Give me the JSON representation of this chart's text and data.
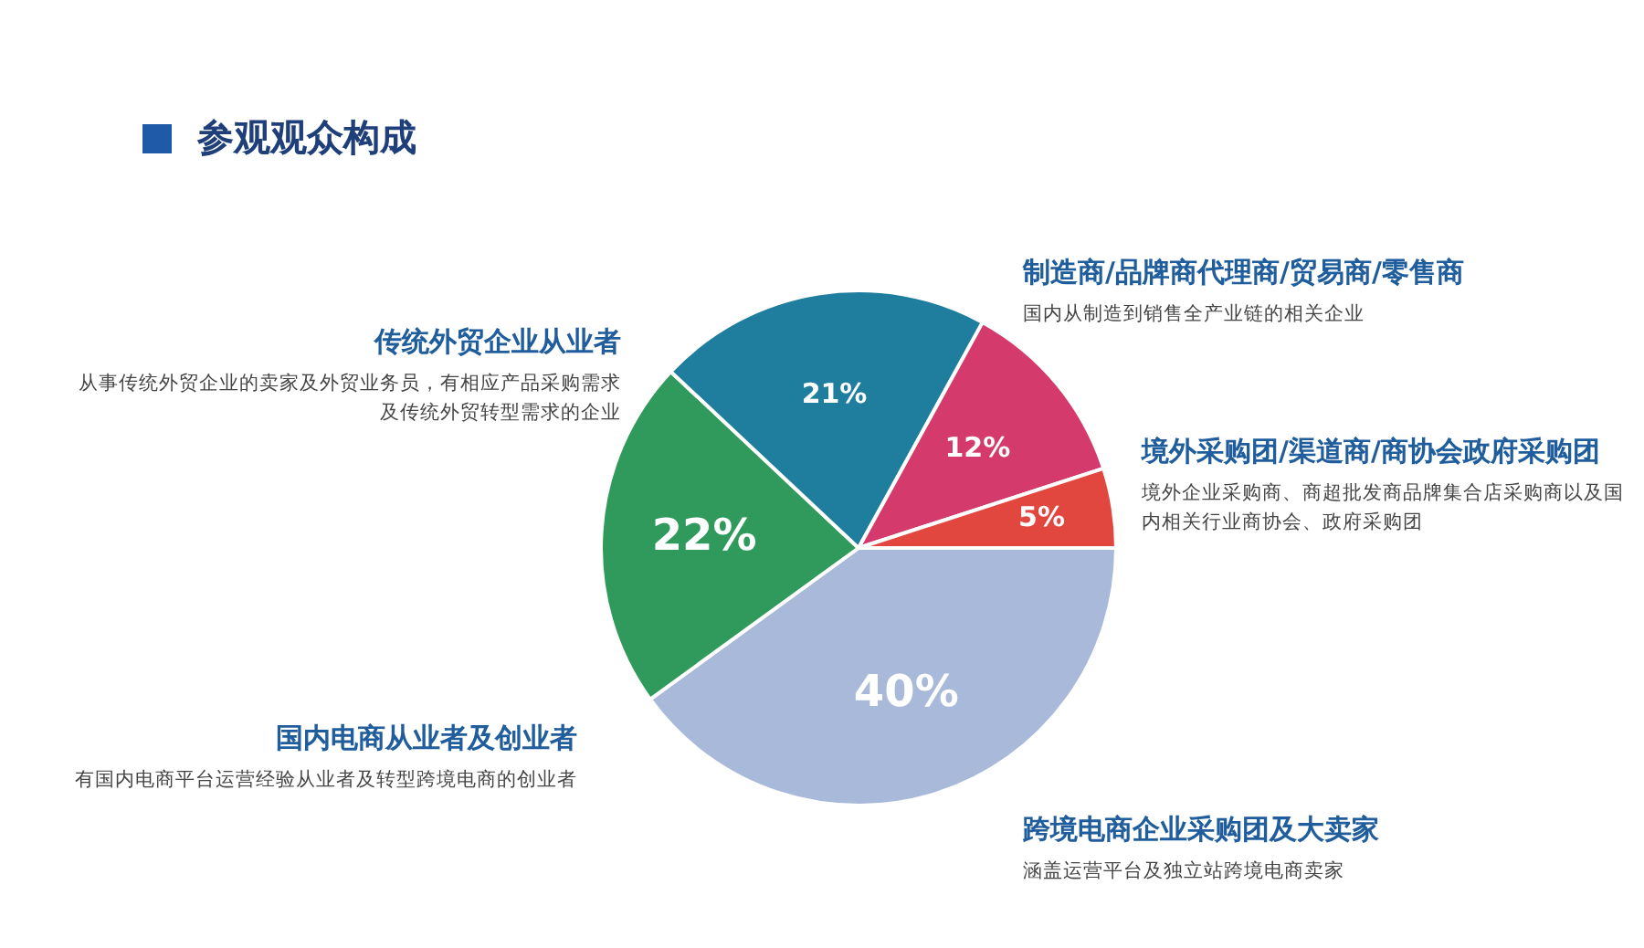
{
  "chart_data": {
    "type": "pie",
    "title": "参观观众构成",
    "categories": [
      "跨境电商企业采购团及大卖家",
      "国内电商从业者及创业者",
      "传统外贸企业从业者",
      "制造商/品牌商代理商/贸易商/零售商",
      "境外采购团/渠道商/商协会政府采购团"
    ],
    "values": [
      40,
      22,
      21,
      12,
      5
    ],
    "value_labels": [
      "40%",
      "22%",
      "21%",
      "12%",
      "5%"
    ],
    "colors": [
      "#a9b9d9",
      "#2f9a5c",
      "#1f7d9e",
      "#d43a6c",
      "#e2473f"
    ],
    "annotations": [
      "涵盖运营平台及独立站跨境电商卖家",
      "有国内电商平台运营经验从业者及转型跨境电商的创业者",
      "从事传统外贸企业的卖家及外贸业务员，有相应产品采购需求及传统外贸转型需求的企业",
      "国内从制造到销售全产业链的相关企业",
      "境外企业采购商、商超批发商品牌集合店采购商以及国内相关行业商协会、政府采购团"
    ],
    "legend": false
  }
}
